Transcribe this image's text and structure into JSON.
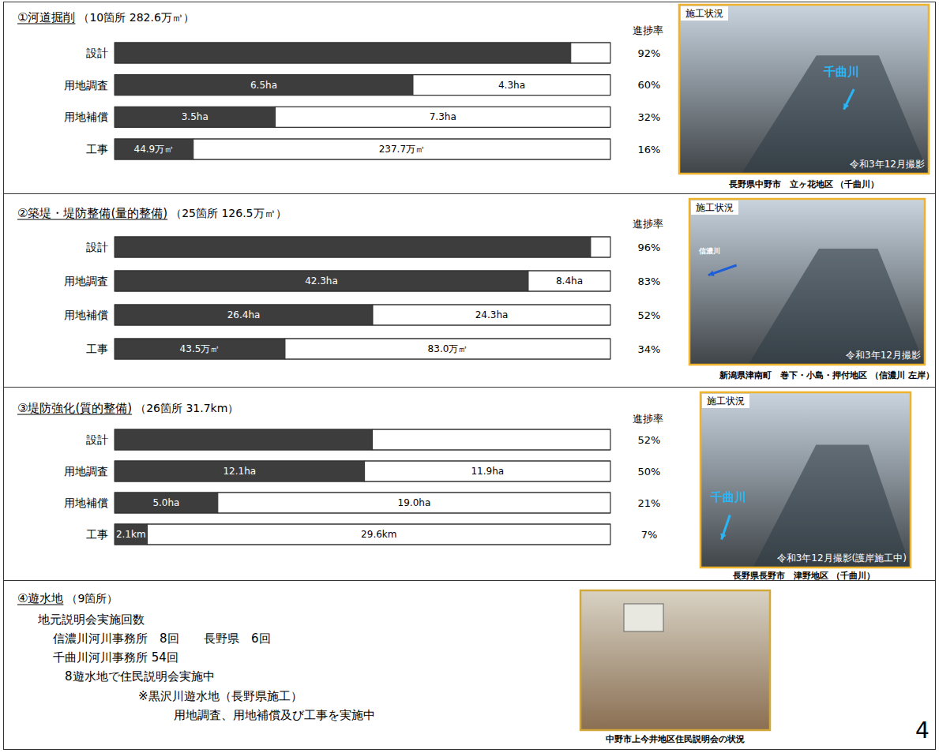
{
  "chart_data": [
    {
      "type": "bar",
      "orientation": "horizontal",
      "stacked": true,
      "data_labels": true,
      "tick_labels": "y",
      "title": "①河道掘削",
      "subtitle": "（10箇所 282.6万㎥）",
      "categories": [
        "設計",
        "用地調査",
        "用地補償",
        "工事"
      ],
      "series": [
        {
          "color": "#3d3d3d",
          "values": [
            92,
            6.5,
            3.5,
            44.9
          ],
          "value_labels": [
            null,
            "6.5ha",
            "3.5ha",
            "44.9万㎥"
          ]
        },
        {
          "color": "#ffffff",
          "values": [
            8,
            4.3,
            7.3,
            237.7
          ],
          "value_labels": [
            null,
            "4.3ha",
            "7.3ha",
            "237.7万㎥"
          ]
        }
      ],
      "progress_title": "進捗率",
      "progress": [
        92,
        60,
        32,
        16
      ],
      "progress_labels": [
        "92%",
        "60%",
        "32%",
        "16%"
      ]
    },
    {
      "type": "bar",
      "orientation": "horizontal",
      "stacked": true,
      "data_labels": true,
      "tick_labels": "y",
      "title": "②築堤・堤防整備(量的整備)",
      "subtitle": "（25箇所 126.5万㎥）",
      "categories": [
        "設計",
        "用地調査",
        "用地補償",
        "工事"
      ],
      "series": [
        {
          "color": "#3d3d3d",
          "values": [
            96,
            42.3,
            26.4,
            43.5
          ],
          "value_labels": [
            null,
            "42.3ha",
            "26.4ha",
            "43.5万㎥"
          ]
        },
        {
          "color": "#ffffff",
          "values": [
            4,
            8.4,
            24.3,
            83.0
          ],
          "value_labels": [
            null,
            "8.4ha",
            "24.3ha",
            "83.0万㎥"
          ]
        }
      ],
      "progress_title": "進捗率",
      "progress": [
        96,
        83,
        52,
        34
      ],
      "progress_labels": [
        "96%",
        "83%",
        "52%",
        "34%"
      ]
    },
    {
      "type": "bar",
      "orientation": "horizontal",
      "stacked": true,
      "data_labels": true,
      "tick_labels": "y",
      "title": "③堤防強化(質的整備)",
      "subtitle": "（26箇所 31.7km）",
      "categories": [
        "設計",
        "用地調査",
        "用地補償",
        "工事"
      ],
      "series": [
        {
          "color": "#3d3d3d",
          "values": [
            52,
            12.1,
            5.0,
            2.1
          ],
          "value_labels": [
            null,
            "12.1ha",
            "5.0ha",
            "2.1km"
          ]
        },
        {
          "color": "#ffffff",
          "values": [
            48,
            11.9,
            19.0,
            29.6
          ],
          "value_labels": [
            null,
            "11.9ha",
            "19.0ha",
            "29.6km"
          ]
        }
      ],
      "progress_title": "進捗率",
      "progress": [
        52,
        50,
        21,
        7
      ],
      "progress_labels": [
        "52%",
        "50%",
        "21%",
        "7%"
      ]
    }
  ],
  "photos": [
    {
      "label": "施工状況",
      "river": "千曲川",
      "date": "令和3年12月撮影",
      "caption": "長野県中野市　立ヶ花地区 （千曲川）"
    },
    {
      "label": "施工状況",
      "river": "信濃川",
      "date": "令和3年12月撮影",
      "caption": "新潟県津南町　巻下・小島・押付地区 （信濃川 左岸）"
    },
    {
      "label": "施工状況",
      "river": "千曲川",
      "date": "令和3年12月撮影(護岸施工中)",
      "caption": "長野県長野市　津野地区 （千曲川）"
    },
    {
      "caption": "中野市上今井地区住民説明会の状況"
    }
  ],
  "section4": {
    "title": "④遊水地",
    "subtitle": "（9箇所）",
    "lines": [
      "地元説明会実施回数",
      "信濃川河川事務所　8回",
      "長野県　6回",
      "千曲川河川事務所 54回",
      "8遊水地で住民説明会実施中",
      "※黒沢川遊水地（長野県施工）",
      "用地調査、用地補償及び工事を実施中"
    ]
  },
  "page_number": "4"
}
